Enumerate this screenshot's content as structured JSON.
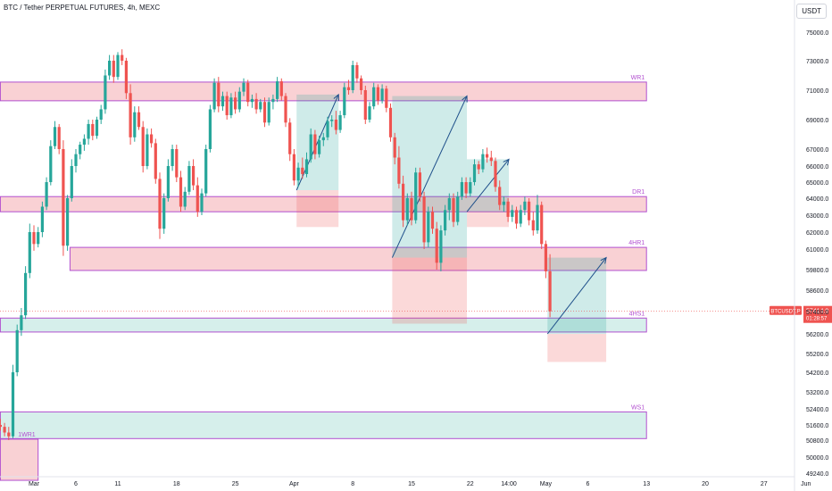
{
  "header": {
    "title": "BTC / Tether PERPETUAL FUTURES, 4h, MEXC",
    "currency": "USDT"
  },
  "price_badge": {
    "symbol": "BTCUSDT.P",
    "price": "57414.9",
    "countdown": "01:28:57"
  },
  "colors": {
    "up": "#26a69a",
    "down": "#ef5350",
    "zone_red": "#f8c9cc",
    "zone_green": "#cfece7",
    "zone_border": "#b24fd0",
    "label": "#b24fd0"
  },
  "chart_data": {
    "type": "candlestick",
    "y_ticks": [
      75000,
      73000,
      71000,
      69000,
      67000,
      66000,
      65000,
      64000,
      63000,
      62000,
      61000,
      59800,
      58600,
      57400,
      56200,
      55200,
      54200,
      53200,
      52400,
      51600,
      50800,
      50000,
      49240
    ],
    "y_tick_labels": [
      "75000.0",
      "73000.0",
      "71000.0",
      "69000.0",
      "67000.0",
      "66000.0",
      "65000.0",
      "64000.0",
      "63000.0",
      "62000.0",
      "61000.0",
      "59800.0",
      "58600.0",
      "57400.0",
      "56200.0",
      "55200.0",
      "54200.0",
      "53200.0",
      "52400.0",
      "51600.0",
      "50800.0",
      "50000.0",
      "49240.0"
    ],
    "x_labels": [
      {
        "label": "Mar",
        "day": 0
      },
      {
        "label": "6",
        "day": 5
      },
      {
        "label": "11",
        "day": 10
      },
      {
        "label": "18",
        "day": 17
      },
      {
        "label": "25",
        "day": 24
      },
      {
        "label": "Apr",
        "day": 31
      },
      {
        "label": "8",
        "day": 38
      },
      {
        "label": "15",
        "day": 45
      },
      {
        "label": "22",
        "day": 52
      },
      {
        "label": "14:00",
        "day": 56.6
      },
      {
        "label": "May",
        "day": 61
      },
      {
        "label": "6",
        "day": 66
      },
      {
        "label": "13",
        "day": 73
      },
      {
        "label": "20",
        "day": 80
      },
      {
        "label": "27",
        "day": 87
      },
      {
        "label": "Jun",
        "day": 92
      }
    ],
    "zones": [
      {
        "label": "WR1",
        "from_day": -4,
        "to_day": 73,
        "top": 71550,
        "bottom": 70280,
        "fill": "red"
      },
      {
        "label": "DR1",
        "from_day": -4,
        "to_day": 73,
        "top": 64100,
        "bottom": 63200,
        "fill": "red"
      },
      {
        "label": "4HR1",
        "from_day": 4.3,
        "to_day": 73,
        "top": 61100,
        "bottom": 59750,
        "fill": "red"
      },
      {
        "label": "4HS1",
        "from_day": -4,
        "to_day": 73,
        "top": 57050,
        "bottom": 56300,
        "fill": "green"
      },
      {
        "label": "WS1",
        "from_day": -4,
        "to_day": 73,
        "top": 52250,
        "bottom": 50880,
        "fill": "green"
      },
      {
        "label": "1WR1",
        "from_day": -4,
        "to_day": 0.5,
        "top": 50850,
        "bottom": 48900,
        "fill": "red"
      }
    ],
    "positions": [
      {
        "from_day": 31.3,
        "to_day": 36.3,
        "entry": 64500,
        "target": 70700,
        "stop": 62300
      },
      {
        "from_day": 42.7,
        "to_day": 51.6,
        "entry": 60500,
        "target": 70600,
        "stop": 56750
      },
      {
        "from_day": 51.6,
        "to_day": 56.6,
        "entry": 63200,
        "target": 66400,
        "stop": 62300
      },
      {
        "from_day": 61.2,
        "to_day": 68.2,
        "entry": 56200,
        "target": 60500,
        "stop": 54750
      }
    ],
    "candles": [
      {
        "day": -4.0,
        "o": 51600,
        "h": 51900,
        "l": 51300,
        "c": 51500
      },
      {
        "day": -3.5,
        "o": 51500,
        "h": 51700,
        "l": 51000,
        "c": 51200
      },
      {
        "day": -3.0,
        "o": 51200,
        "h": 51500,
        "l": 50800,
        "c": 51000
      },
      {
        "day": -2.5,
        "o": 51000,
        "h": 54600,
        "l": 50900,
        "c": 54200
      },
      {
        "day": -2.0,
        "o": 54200,
        "h": 56700,
        "l": 54000,
        "c": 56400
      },
      {
        "day": -1.5,
        "o": 56400,
        "h": 57600,
        "l": 56100,
        "c": 57200
      },
      {
        "day": -1.0,
        "o": 57200,
        "h": 60000,
        "l": 57000,
        "c": 59600
      },
      {
        "day": -0.5,
        "o": 59600,
        "h": 62500,
        "l": 59300,
        "c": 62000
      },
      {
        "day": 0.0,
        "o": 62000,
        "h": 62400,
        "l": 60900,
        "c": 61300
      },
      {
        "day": 0.5,
        "o": 61300,
        "h": 62300,
        "l": 61100,
        "c": 62000
      },
      {
        "day": 1.0,
        "o": 62000,
        "h": 63800,
        "l": 61700,
        "c": 63500
      },
      {
        "day": 1.5,
        "o": 63500,
        "h": 65300,
        "l": 63300,
        "c": 65000
      },
      {
        "day": 2.0,
        "o": 65000,
        "h": 67600,
        "l": 64800,
        "c": 67200
      },
      {
        "day": 2.5,
        "o": 67200,
        "h": 68900,
        "l": 67000,
        "c": 68500
      },
      {
        "day": 3.0,
        "o": 68500,
        "h": 68700,
        "l": 66700,
        "c": 67000
      },
      {
        "day": 3.5,
        "o": 67000,
        "h": 67600,
        "l": 60600,
        "c": 61200
      },
      {
        "day": 4.0,
        "o": 61200,
        "h": 64200,
        "l": 60900,
        "c": 64000
      },
      {
        "day": 4.5,
        "o": 64000,
        "h": 66400,
        "l": 63800,
        "c": 66000
      },
      {
        "day": 5.0,
        "o": 66000,
        "h": 67000,
        "l": 65600,
        "c": 66700
      },
      {
        "day": 5.5,
        "o": 66700,
        "h": 67500,
        "l": 66400,
        "c": 67300
      },
      {
        "day": 6.0,
        "o": 67300,
        "h": 68000,
        "l": 66900,
        "c": 67700
      },
      {
        "day": 6.5,
        "o": 67700,
        "h": 69000,
        "l": 67300,
        "c": 68700
      },
      {
        "day": 7.0,
        "o": 68700,
        "h": 69000,
        "l": 67600,
        "c": 67900
      },
      {
        "day": 7.5,
        "o": 67900,
        "h": 69200,
        "l": 67700,
        "c": 69000
      },
      {
        "day": 8.0,
        "o": 69000,
        "h": 70000,
        "l": 68700,
        "c": 69700
      },
      {
        "day": 8.5,
        "o": 69700,
        "h": 72400,
        "l": 69400,
        "c": 72000
      },
      {
        "day": 9.0,
        "o": 72000,
        "h": 73400,
        "l": 71700,
        "c": 73000
      },
      {
        "day": 9.5,
        "o": 73000,
        "h": 73400,
        "l": 71500,
        "c": 71900
      },
      {
        "day": 10.0,
        "o": 71900,
        "h": 73600,
        "l": 71700,
        "c": 73400
      },
      {
        "day": 10.5,
        "o": 73400,
        "h": 73800,
        "l": 72700,
        "c": 73000
      },
      {
        "day": 11.0,
        "o": 73000,
        "h": 73200,
        "l": 70400,
        "c": 70800
      },
      {
        "day": 11.5,
        "o": 70800,
        "h": 71400,
        "l": 67300,
        "c": 67800
      },
      {
        "day": 12.0,
        "o": 67800,
        "h": 69900,
        "l": 67500,
        "c": 69500
      },
      {
        "day": 12.5,
        "o": 69500,
        "h": 69900,
        "l": 68300,
        "c": 68500
      },
      {
        "day": 13.0,
        "o": 68500,
        "h": 68900,
        "l": 65600,
        "c": 66000
      },
      {
        "day": 13.5,
        "o": 66000,
        "h": 68400,
        "l": 65800,
        "c": 68000
      },
      {
        "day": 14.0,
        "o": 68000,
        "h": 68400,
        "l": 67100,
        "c": 67400
      },
      {
        "day": 14.5,
        "o": 67400,
        "h": 67700,
        "l": 64900,
        "c": 65200
      },
      {
        "day": 15.0,
        "o": 65200,
        "h": 65600,
        "l": 61600,
        "c": 62200
      },
      {
        "day": 15.5,
        "o": 62200,
        "h": 64300,
        "l": 61900,
        "c": 64000
      },
      {
        "day": 16.0,
        "o": 64000,
        "h": 66400,
        "l": 63800,
        "c": 66000
      },
      {
        "day": 16.5,
        "o": 66000,
        "h": 67300,
        "l": 65700,
        "c": 67000
      },
      {
        "day": 17.0,
        "o": 67000,
        "h": 67300,
        "l": 65000,
        "c": 65300
      },
      {
        "day": 17.5,
        "o": 65300,
        "h": 65700,
        "l": 63200,
        "c": 63500
      },
      {
        "day": 18.0,
        "o": 63500,
        "h": 64700,
        "l": 63300,
        "c": 64400
      },
      {
        "day": 18.5,
        "o": 64400,
        "h": 66300,
        "l": 64200,
        "c": 66000
      },
      {
        "day": 19.0,
        "o": 66000,
        "h": 66400,
        "l": 64500,
        "c": 64800
      },
      {
        "day": 19.5,
        "o": 64800,
        "h": 65300,
        "l": 62900,
        "c": 63200
      },
      {
        "day": 20.0,
        "o": 63200,
        "h": 64600,
        "l": 63000,
        "c": 64300
      },
      {
        "day": 20.5,
        "o": 64300,
        "h": 67300,
        "l": 64100,
        "c": 67000
      },
      {
        "day": 21.0,
        "o": 67000,
        "h": 70000,
        "l": 66800,
        "c": 69700
      },
      {
        "day": 21.5,
        "o": 69700,
        "h": 71800,
        "l": 69500,
        "c": 71500
      },
      {
        "day": 22.0,
        "o": 71500,
        "h": 71900,
        "l": 69500,
        "c": 69900
      },
      {
        "day": 22.5,
        "o": 69900,
        "h": 70900,
        "l": 69600,
        "c": 70600
      },
      {
        "day": 23.0,
        "o": 70600,
        "h": 70900,
        "l": 69000,
        "c": 69300
      },
      {
        "day": 23.5,
        "o": 69300,
        "h": 70800,
        "l": 69100,
        "c": 70500
      },
      {
        "day": 24.0,
        "o": 70500,
        "h": 70900,
        "l": 69400,
        "c": 69700
      },
      {
        "day": 24.5,
        "o": 69700,
        "h": 71200,
        "l": 69500,
        "c": 70900
      },
      {
        "day": 25.0,
        "o": 70900,
        "h": 71800,
        "l": 70600,
        "c": 71500
      },
      {
        "day": 25.5,
        "o": 71500,
        "h": 71700,
        "l": 69900,
        "c": 70200
      },
      {
        "day": 26.0,
        "o": 70200,
        "h": 70700,
        "l": 69800,
        "c": 70400
      },
      {
        "day": 26.5,
        "o": 70400,
        "h": 70800,
        "l": 69400,
        "c": 69700
      },
      {
        "day": 27.0,
        "o": 69700,
        "h": 70400,
        "l": 69500,
        "c": 70200
      },
      {
        "day": 27.5,
        "o": 70200,
        "h": 70500,
        "l": 68500,
        "c": 68800
      },
      {
        "day": 28.0,
        "o": 68800,
        "h": 70500,
        "l": 68600,
        "c": 70200
      },
      {
        "day": 28.5,
        "o": 70200,
        "h": 70700,
        "l": 69700,
        "c": 70400
      },
      {
        "day": 29.0,
        "o": 70400,
        "h": 71900,
        "l": 70200,
        "c": 71600
      },
      {
        "day": 29.5,
        "o": 71600,
        "h": 71800,
        "l": 70300,
        "c": 70600
      },
      {
        "day": 30.0,
        "o": 70600,
        "h": 70800,
        "l": 68500,
        "c": 68800
      },
      {
        "day": 30.5,
        "o": 68800,
        "h": 69100,
        "l": 66300,
        "c": 66700
      },
      {
        "day": 31.0,
        "o": 66700,
        "h": 67000,
        "l": 64800,
        "c": 65100
      },
      {
        "day": 31.5,
        "o": 65100,
        "h": 66200,
        "l": 64700,
        "c": 65900
      },
      {
        "day": 32.0,
        "o": 65900,
        "h": 66500,
        "l": 65200,
        "c": 65500
      },
      {
        "day": 32.5,
        "o": 65500,
        "h": 66800,
        "l": 65300,
        "c": 66400
      },
      {
        "day": 33.0,
        "o": 66400,
        "h": 68400,
        "l": 66200,
        "c": 68000
      },
      {
        "day": 33.5,
        "o": 68000,
        "h": 68300,
        "l": 66400,
        "c": 66700
      },
      {
        "day": 34.0,
        "o": 66700,
        "h": 67900,
        "l": 66500,
        "c": 67600
      },
      {
        "day": 34.5,
        "o": 67600,
        "h": 68100,
        "l": 67200,
        "c": 67800
      },
      {
        "day": 35.0,
        "o": 67800,
        "h": 69200,
        "l": 67600,
        "c": 68900
      },
      {
        "day": 35.5,
        "o": 68900,
        "h": 69300,
        "l": 68500,
        "c": 69000
      },
      {
        "day": 36.0,
        "o": 69000,
        "h": 69600,
        "l": 68000,
        "c": 68300
      },
      {
        "day": 36.5,
        "o": 68300,
        "h": 69600,
        "l": 68100,
        "c": 69300
      },
      {
        "day": 37.0,
        "o": 69300,
        "h": 71500,
        "l": 69100,
        "c": 71200
      },
      {
        "day": 37.5,
        "o": 71200,
        "h": 71700,
        "l": 70700,
        "c": 71000
      },
      {
        "day": 38.0,
        "o": 71000,
        "h": 73000,
        "l": 70800,
        "c": 72700
      },
      {
        "day": 38.5,
        "o": 72700,
        "h": 72900,
        "l": 71500,
        "c": 71800
      },
      {
        "day": 39.0,
        "o": 71800,
        "h": 72000,
        "l": 70700,
        "c": 71000
      },
      {
        "day": 39.5,
        "o": 71000,
        "h": 71300,
        "l": 68700,
        "c": 69000
      },
      {
        "day": 40.0,
        "o": 69000,
        "h": 70200,
        "l": 68800,
        "c": 69900
      },
      {
        "day": 40.5,
        "o": 69900,
        "h": 71500,
        "l": 69700,
        "c": 71200
      },
      {
        "day": 41.0,
        "o": 71200,
        "h": 71400,
        "l": 70000,
        "c": 70300
      },
      {
        "day": 41.5,
        "o": 70300,
        "h": 71400,
        "l": 70100,
        "c": 71100
      },
      {
        "day": 42.0,
        "o": 71100,
        "h": 71300,
        "l": 69500,
        "c": 69800
      },
      {
        "day": 42.5,
        "o": 69800,
        "h": 70100,
        "l": 67500,
        "c": 67800
      },
      {
        "day": 43.0,
        "o": 67800,
        "h": 68100,
        "l": 66100,
        "c": 66500
      },
      {
        "day": 43.5,
        "o": 66500,
        "h": 67200,
        "l": 64600,
        "c": 64900
      },
      {
        "day": 44.0,
        "o": 64900,
        "h": 65400,
        "l": 62300,
        "c": 62700
      },
      {
        "day": 44.5,
        "o": 62700,
        "h": 64300,
        "l": 62400,
        "c": 64000
      },
      {
        "day": 45.0,
        "o": 64000,
        "h": 64400,
        "l": 62400,
        "c": 62700
      },
      {
        "day": 45.5,
        "o": 62700,
        "h": 65900,
        "l": 62500,
        "c": 65600
      },
      {
        "day": 46.0,
        "o": 65600,
        "h": 65900,
        "l": 63800,
        "c": 64100
      },
      {
        "day": 46.5,
        "o": 64100,
        "h": 64400,
        "l": 61000,
        "c": 61400
      },
      {
        "day": 47.0,
        "o": 61400,
        "h": 63500,
        "l": 61100,
        "c": 63200
      },
      {
        "day": 47.5,
        "o": 63200,
        "h": 63500,
        "l": 61900,
        "c": 62200
      },
      {
        "day": 48.0,
        "o": 62200,
        "h": 62600,
        "l": 59800,
        "c": 60200
      },
      {
        "day": 48.5,
        "o": 60200,
        "h": 62400,
        "l": 59700,
        "c": 62100
      },
      {
        "day": 49.0,
        "o": 62100,
        "h": 63600,
        "l": 61800,
        "c": 63300
      },
      {
        "day": 49.5,
        "o": 63300,
        "h": 64300,
        "l": 62700,
        "c": 64000
      },
      {
        "day": 50.0,
        "o": 64000,
        "h": 64300,
        "l": 62300,
        "c": 62600
      },
      {
        "day": 50.5,
        "o": 62600,
        "h": 64400,
        "l": 62400,
        "c": 64100
      },
      {
        "day": 51.0,
        "o": 64100,
        "h": 65300,
        "l": 63900,
        "c": 65000
      },
      {
        "day": 51.5,
        "o": 65000,
        "h": 65300,
        "l": 64000,
        "c": 64300
      },
      {
        "day": 52.0,
        "o": 64300,
        "h": 65300,
        "l": 64100,
        "c": 65000
      },
      {
        "day": 52.5,
        "o": 65000,
        "h": 66400,
        "l": 64800,
        "c": 66100
      },
      {
        "day": 53.0,
        "o": 66100,
        "h": 66300,
        "l": 65500,
        "c": 65800
      },
      {
        "day": 53.5,
        "o": 65800,
        "h": 67000,
        "l": 65600,
        "c": 66700
      },
      {
        "day": 54.0,
        "o": 66700,
        "h": 67100,
        "l": 66200,
        "c": 66500
      },
      {
        "day": 54.5,
        "o": 66500,
        "h": 66900,
        "l": 66000,
        "c": 66300
      },
      {
        "day": 55.0,
        "o": 66300,
        "h": 66500,
        "l": 64400,
        "c": 64700
      },
      {
        "day": 55.5,
        "o": 64700,
        "h": 65100,
        "l": 63300,
        "c": 63600
      },
      {
        "day": 56.0,
        "o": 63600,
        "h": 64100,
        "l": 63200,
        "c": 63800
      },
      {
        "day": 56.5,
        "o": 63800,
        "h": 64000,
        "l": 62600,
        "c": 62900
      },
      {
        "day": 57.0,
        "o": 62900,
        "h": 63600,
        "l": 62600,
        "c": 63300
      },
      {
        "day": 57.5,
        "o": 63300,
        "h": 63500,
        "l": 62200,
        "c": 62500
      },
      {
        "day": 58.0,
        "o": 62500,
        "h": 63600,
        "l": 62300,
        "c": 63300
      },
      {
        "day": 58.5,
        "o": 63300,
        "h": 64100,
        "l": 63000,
        "c": 63800
      },
      {
        "day": 59.0,
        "o": 63800,
        "h": 64000,
        "l": 62400,
        "c": 62700
      },
      {
        "day": 59.5,
        "o": 62700,
        "h": 63200,
        "l": 61800,
        "c": 62100
      },
      {
        "day": 60.0,
        "o": 62100,
        "h": 64200,
        "l": 61900,
        "c": 63600
      },
      {
        "day": 60.5,
        "o": 63600,
        "h": 63800,
        "l": 61000,
        "c": 61300
      },
      {
        "day": 61.0,
        "o": 61300,
        "h": 61500,
        "l": 59300,
        "c": 59700
      },
      {
        "day": 61.5,
        "o": 59700,
        "h": 60700,
        "l": 57100,
        "c": 57414.9
      }
    ]
  }
}
